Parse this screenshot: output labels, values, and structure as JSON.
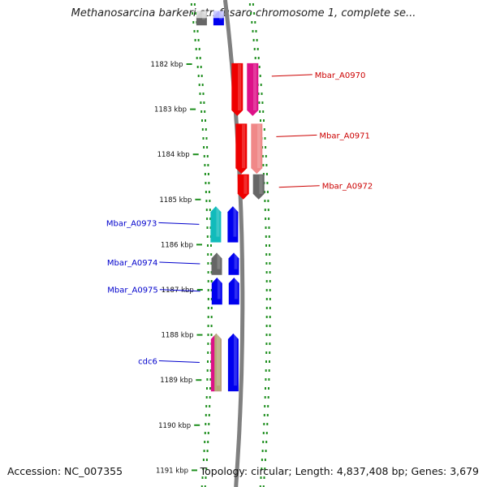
{
  "title": "Methanosarcina barkeri str. fusaro chromosome 1, complete se...",
  "footer": {
    "accession": "Accession: NC_007355",
    "topology": "Topology: circular",
    "length": "Length: 4,837,408 bp",
    "genes": "Genes: 3,679"
  },
  "colors": {
    "backbone": "#808080",
    "track_tick": "#1f8f1f",
    "label_forward": "#cc0000",
    "label_reverse": "#0000cc"
  },
  "ticks": [
    {
      "label": "1182 kbp",
      "kbp": 1182
    },
    {
      "label": "1183 kbp",
      "kbp": 1183
    },
    {
      "label": "1184 kbp",
      "kbp": 1184
    },
    {
      "label": "1185 kbp",
      "kbp": 1185
    },
    {
      "label": "1186 kbp",
      "kbp": 1186
    },
    {
      "label": "1187 kbp",
      "kbp": 1187
    },
    {
      "label": "1188 kbp",
      "kbp": 1188
    },
    {
      "label": "1189 kbp",
      "kbp": 1189
    },
    {
      "label": "1190 kbp",
      "kbp": 1190
    },
    {
      "label": "1191 kbp",
      "kbp": 1191
    }
  ],
  "features": [
    {
      "strand": "reverse",
      "lane": "outer",
      "start_kbp": 1180.82,
      "end_kbp": 1181.14,
      "color": "#666666",
      "top_color": "#dddddd",
      "label": ""
    },
    {
      "strand": "reverse",
      "lane": "inner",
      "start_kbp": 1180.82,
      "end_kbp": 1181.14,
      "color": "#0000ee",
      "top_color": "#c8c8ff",
      "label": ""
    },
    {
      "strand": "forward",
      "lane": "inner",
      "start_kbp": 1181.98,
      "end_kbp": 1183.15,
      "color": "#ee0000",
      "label": "Mbar_A0970"
    },
    {
      "strand": "forward",
      "lane": "outer",
      "start_kbp": 1181.98,
      "end_kbp": 1183.15,
      "color": "#dd1188",
      "label": ""
    },
    {
      "strand": "forward",
      "lane": "inner",
      "start_kbp": 1183.32,
      "end_kbp": 1184.43,
      "color": "#ee0000",
      "label": "Mbar_A0971"
    },
    {
      "strand": "forward",
      "lane": "outer",
      "start_kbp": 1183.32,
      "end_kbp": 1184.43,
      "color": "#f08888",
      "label": ""
    },
    {
      "strand": "forward",
      "lane": "inner",
      "start_kbp": 1184.44,
      "end_kbp": 1185.0,
      "color": "#ee0000",
      "label": "Mbar_A0972"
    },
    {
      "strand": "forward",
      "lane": "outer",
      "start_kbp": 1184.44,
      "end_kbp": 1185.0,
      "color": "#666666",
      "label": ""
    },
    {
      "strand": "reverse",
      "lane": "outer",
      "start_kbp": 1185.15,
      "end_kbp": 1185.95,
      "color": "#11bbbb",
      "label": "Mbar_A0973"
    },
    {
      "strand": "reverse",
      "lane": "inner",
      "start_kbp": 1185.15,
      "end_kbp": 1185.95,
      "color": "#0000ee",
      "label": ""
    },
    {
      "strand": "reverse",
      "lane": "outer",
      "start_kbp": 1186.18,
      "end_kbp": 1186.67,
      "color": "#666666",
      "label": "Mbar_A0974"
    },
    {
      "strand": "reverse",
      "lane": "inner",
      "start_kbp": 1186.18,
      "end_kbp": 1186.67,
      "color": "#0000ee",
      "label": ""
    },
    {
      "strand": "reverse",
      "lane": "outer",
      "start_kbp": 1186.73,
      "end_kbp": 1187.33,
      "color": "#0000ee",
      "label": "Mbar_A0975"
    },
    {
      "strand": "reverse",
      "lane": "inner",
      "start_kbp": 1186.73,
      "end_kbp": 1187.33,
      "color": "#0000ee",
      "label": ""
    },
    {
      "strand": "reverse",
      "lane": "outer",
      "start_kbp": 1187.97,
      "end_kbp": 1189.25,
      "color": "#dd1188",
      "stripes": [
        "#dd1188",
        "#b3ab78",
        "#b3ab78"
      ],
      "label": "cdc6"
    },
    {
      "strand": "reverse",
      "lane": "inner",
      "start_kbp": 1187.97,
      "end_kbp": 1189.25,
      "color": "#0000ee",
      "label": ""
    }
  ]
}
